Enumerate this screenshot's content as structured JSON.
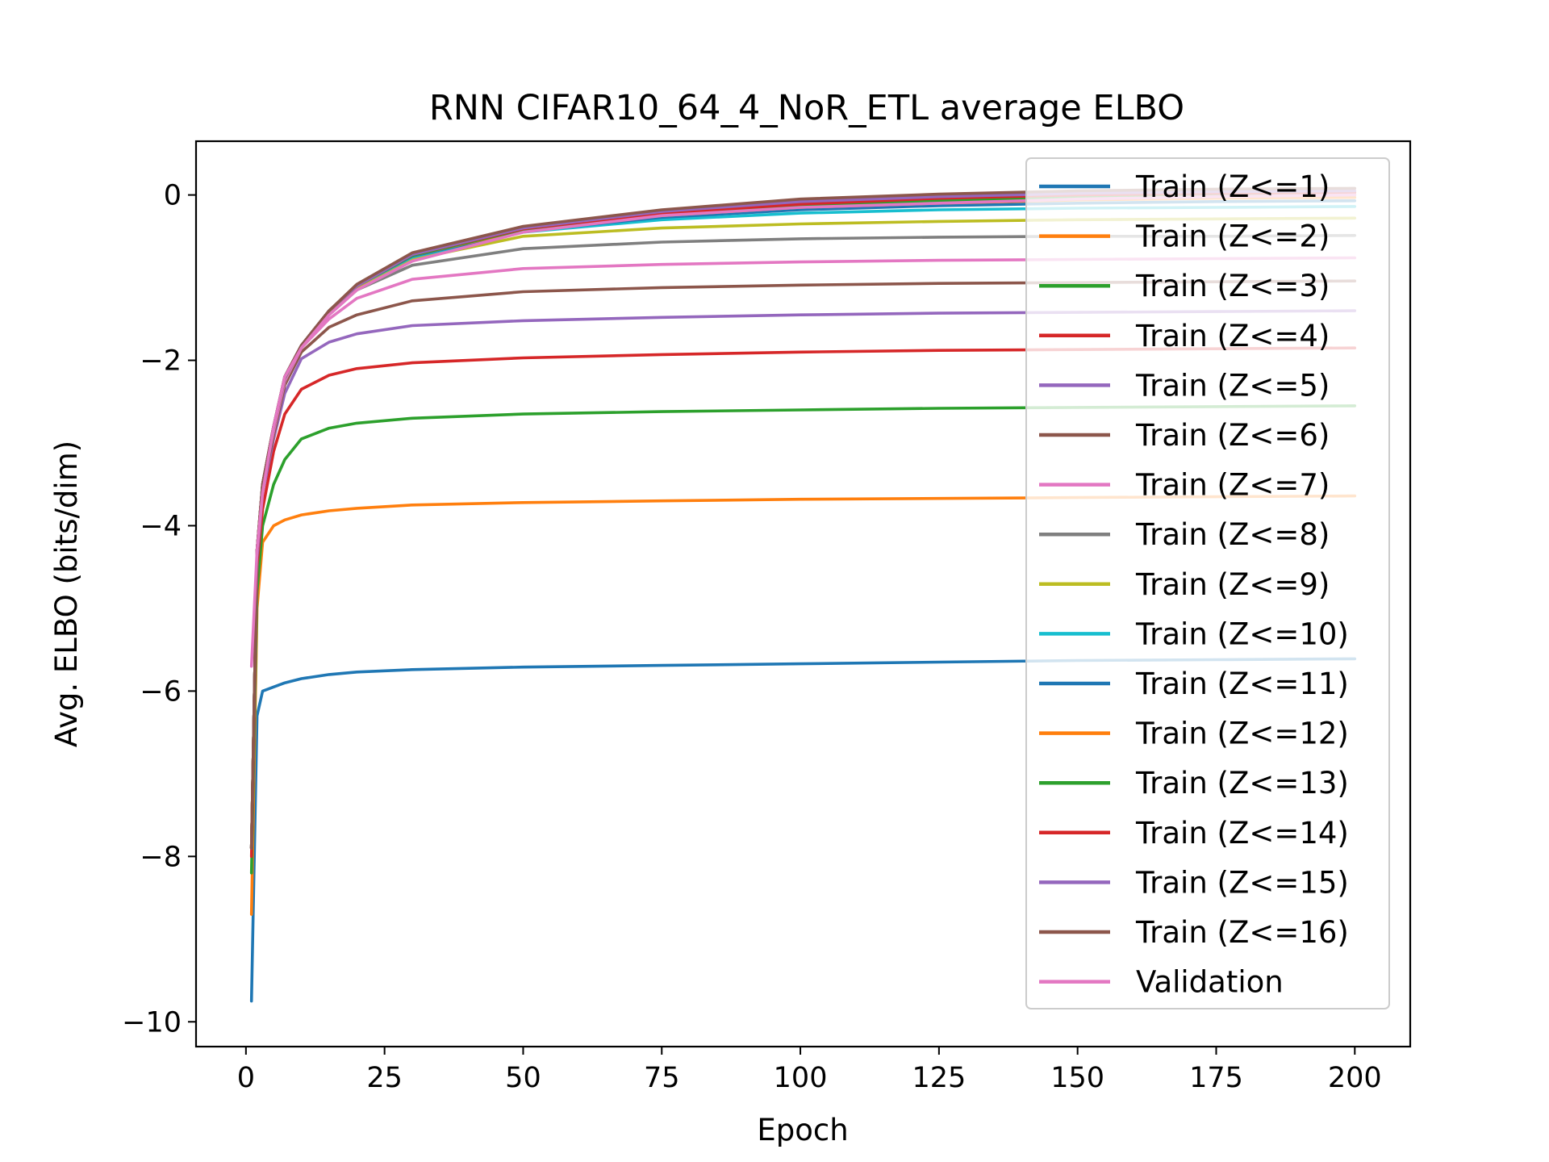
{
  "chart_data": {
    "type": "line",
    "title": "RNN CIFAR10_64_4_NoR_ETL average ELBO",
    "xlabel": "Epoch",
    "ylabel": "Avg. ELBO (bits/dim)",
    "xlim": [
      -9,
      210
    ],
    "ylim": [
      -10.3,
      0.65
    ],
    "xticks": [
      0,
      25,
      50,
      75,
      100,
      125,
      150,
      175,
      200
    ],
    "yticks": [
      0,
      -2,
      -4,
      -6,
      -8,
      -10
    ],
    "ytick_labels": [
      "0",
      "−2",
      "−4",
      "−6",
      "−8",
      "−10"
    ],
    "legend_position": "upper-right",
    "x": [
      1,
      2,
      3,
      5,
      7,
      10,
      15,
      20,
      30,
      50,
      75,
      100,
      125,
      150,
      175,
      200
    ],
    "series": [
      {
        "name": "Train (Z<=1)",
        "color": "#1f77b4",
        "values": [
          -9.75,
          -6.3,
          -6.0,
          -5.95,
          -5.9,
          -5.85,
          -5.8,
          -5.77,
          -5.74,
          -5.71,
          -5.69,
          -5.67,
          -5.65,
          -5.63,
          -5.62,
          -5.61
        ]
      },
      {
        "name": "Train (Z<=2)",
        "color": "#ff7f0e",
        "values": [
          -8.7,
          -5.0,
          -4.2,
          -4.0,
          -3.93,
          -3.87,
          -3.82,
          -3.79,
          -3.75,
          -3.72,
          -3.7,
          -3.68,
          -3.67,
          -3.66,
          -3.65,
          -3.64
        ]
      },
      {
        "name": "Train (Z<=3)",
        "color": "#2ca02c",
        "values": [
          -8.2,
          -4.8,
          -4.0,
          -3.5,
          -3.2,
          -2.95,
          -2.82,
          -2.76,
          -2.7,
          -2.65,
          -2.62,
          -2.6,
          -2.58,
          -2.57,
          -2.56,
          -2.55
        ]
      },
      {
        "name": "Train (Z<=4)",
        "color": "#d62728",
        "values": [
          -8.0,
          -4.5,
          -3.8,
          -3.1,
          -2.65,
          -2.35,
          -2.18,
          -2.1,
          -2.03,
          -1.97,
          -1.93,
          -1.9,
          -1.88,
          -1.87,
          -1.86,
          -1.85
        ]
      },
      {
        "name": "Train (Z<=5)",
        "color": "#9467bd",
        "values": [
          -7.9,
          -4.4,
          -3.6,
          -2.95,
          -2.4,
          -1.98,
          -1.78,
          -1.68,
          -1.58,
          -1.52,
          -1.48,
          -1.45,
          -1.43,
          -1.42,
          -1.41,
          -1.4
        ]
      },
      {
        "name": "Train (Z<=6)",
        "color": "#8c564b",
        "values": [
          -7.9,
          -4.3,
          -3.55,
          -2.9,
          -2.3,
          -1.9,
          -1.6,
          -1.45,
          -1.28,
          -1.17,
          -1.12,
          -1.09,
          -1.07,
          -1.06,
          -1.05,
          -1.04
        ]
      },
      {
        "name": "Train (Z<=7)",
        "color": "#e377c2",
        "values": [
          -7.9,
          -4.3,
          -3.5,
          -2.85,
          -2.25,
          -1.85,
          -1.5,
          -1.25,
          -1.02,
          -0.89,
          -0.84,
          -0.81,
          -0.79,
          -0.78,
          -0.77,
          -0.76
        ]
      },
      {
        "name": "Train (Z<=8)",
        "color": "#7f7f7f",
        "values": [
          -7.9,
          -4.3,
          -3.5,
          -2.8,
          -2.22,
          -1.83,
          -1.45,
          -1.15,
          -0.85,
          -0.65,
          -0.57,
          -0.53,
          -0.51,
          -0.5,
          -0.5,
          -0.49
        ]
      },
      {
        "name": "Train (Z<=9)",
        "color": "#bcbd22",
        "values": [
          -7.9,
          -4.3,
          -3.5,
          -2.8,
          -2.2,
          -1.82,
          -1.42,
          -1.12,
          -0.78,
          -0.5,
          -0.4,
          -0.35,
          -0.32,
          -0.3,
          -0.29,
          -0.28
        ]
      },
      {
        "name": "Train (Z<=10)",
        "color": "#17becf",
        "values": [
          -7.9,
          -4.3,
          -3.5,
          -2.8,
          -2.2,
          -1.82,
          -1.4,
          -1.1,
          -0.75,
          -0.45,
          -0.3,
          -0.22,
          -0.18,
          -0.16,
          -0.15,
          -0.14
        ]
      },
      {
        "name": "Train (Z<=11)",
        "color": "#1f77b4",
        "values": [
          -7.9,
          -4.3,
          -3.5,
          -2.8,
          -2.2,
          -1.82,
          -1.4,
          -1.1,
          -0.74,
          -0.44,
          -0.27,
          -0.18,
          -0.13,
          -0.1,
          -0.08,
          -0.07
        ]
      },
      {
        "name": "Train (Z<=12)",
        "color": "#ff7f0e",
        "values": [
          -7.9,
          -4.3,
          -3.5,
          -2.8,
          -2.2,
          -1.82,
          -1.4,
          -1.1,
          -0.73,
          -0.43,
          -0.25,
          -0.15,
          -0.1,
          -0.06,
          -0.04,
          -0.03
        ]
      },
      {
        "name": "Train (Z<=13)",
        "color": "#2ca02c",
        "values": [
          -7.9,
          -4.3,
          -3.5,
          -2.8,
          -2.2,
          -1.82,
          -1.4,
          -1.1,
          -0.73,
          -0.42,
          -0.24,
          -0.13,
          -0.07,
          -0.03,
          -0.01,
          0.0
        ]
      },
      {
        "name": "Train (Z<=14)",
        "color": "#d62728",
        "values": [
          -7.9,
          -4.3,
          -3.5,
          -2.8,
          -2.2,
          -1.82,
          -1.4,
          -1.1,
          -0.72,
          -0.41,
          -0.22,
          -0.11,
          -0.04,
          0.0,
          0.02,
          0.03
        ]
      },
      {
        "name": "Train (Z<=15)",
        "color": "#9467bd",
        "values": [
          -7.9,
          -4.3,
          -3.5,
          -2.8,
          -2.2,
          -1.82,
          -1.4,
          -1.1,
          -0.72,
          -0.4,
          -0.2,
          -0.08,
          -0.02,
          0.02,
          0.04,
          0.05
        ]
      },
      {
        "name": "Train (Z<=16)",
        "color": "#8c564b",
        "values": [
          -7.9,
          -4.3,
          -3.5,
          -2.8,
          -2.2,
          -1.82,
          -1.4,
          -1.08,
          -0.7,
          -0.38,
          -0.18,
          -0.05,
          0.01,
          0.05,
          0.07,
          0.08
        ]
      },
      {
        "name": "Validation",
        "color": "#e377c2",
        "values": [
          -5.7,
          -4.3,
          -3.6,
          -2.8,
          -2.2,
          -1.85,
          -1.45,
          -1.15,
          -0.8,
          -0.45,
          -0.25,
          -0.15,
          -0.1,
          -0.05,
          -0.02,
          0.0
        ]
      }
    ]
  }
}
